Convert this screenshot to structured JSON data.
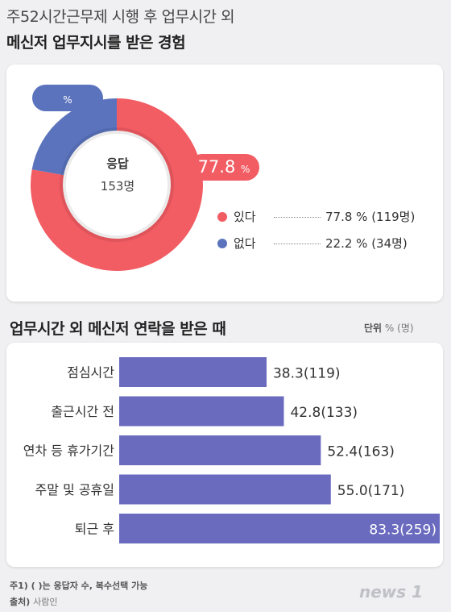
{
  "header": {
    "title_line1": "주52시간근무제 시행 후 업무시간 외",
    "title_line2": "메신저 업무지시를 받은 경험"
  },
  "donut": {
    "center_label": "응답",
    "center_value": "153명",
    "pct_suffix": "%",
    "legend": [
      {
        "label": "있다",
        "value": "77.8 % (119명)"
      },
      {
        "label": "없다",
        "value": "22.2 % (34명)"
      }
    ]
  },
  "bars_section": {
    "title": "업무시간 외 메신저 연락을 받은 때",
    "unit_label": "단위",
    "unit_value": "% (명)"
  },
  "chart_data": [
    {
      "type": "pie",
      "categories": [
        "있다",
        "없다"
      ],
      "values": [
        77.8,
        22.2
      ],
      "labels": [
        "77.8",
        "22.2"
      ],
      "counts": [
        119,
        34
      ],
      "colors": [
        "#f25c63",
        "#5b73bd"
      ]
    },
    {
      "type": "bar",
      "orientation": "horizontal",
      "categories": [
        "점심시간",
        "출근시간 전",
        "연차 등 휴가기간",
        "주말 및 공휴일",
        "퇴근 후"
      ],
      "values": [
        38.3,
        42.8,
        52.4,
        55.0,
        83.3
      ],
      "value_labels": [
        "38.3(119)",
        "42.8(133)",
        "52.4(163)",
        "55.0(171)",
        "83.3(259)"
      ],
      "xlim": [
        0,
        83.3
      ],
      "color": "#6a6bbf"
    }
  ],
  "footer": {
    "note1": "주1) ( )는 응답자 수, 복수선택 가능",
    "source_label": "출처)",
    "source_value": "사람인",
    "logo": "news 1"
  }
}
